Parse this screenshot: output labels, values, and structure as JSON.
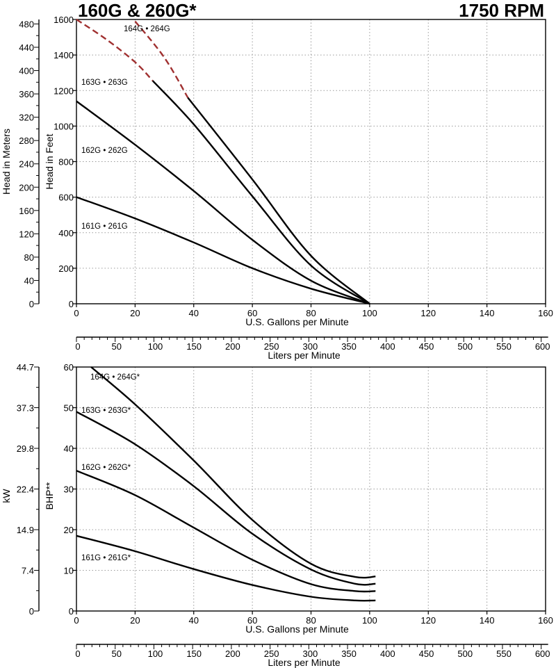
{
  "header": {
    "left_title": "160G & 260G*",
    "right_title": "1750 RPM"
  },
  "colors": {
    "curve": "#000000",
    "dashed_curve": "#a03030",
    "grid": "#9a9a9a"
  },
  "chart_data": [
    {
      "type": "line",
      "name": "head",
      "xlabel": "U.S. Gallons per Minute",
      "x2label": "Liters per Minute",
      "ylabel": "Head in Feet",
      "y2label": "Head in Meters",
      "xlim": [
        0,
        160
      ],
      "ylim": [
        0,
        1600
      ],
      "x_ticks": [
        0,
        20,
        40,
        60,
        80,
        100,
        120,
        140,
        160
      ],
      "y_ticks": [
        0,
        200,
        400,
        600,
        800,
        1000,
        1200,
        1400,
        1600
      ],
      "x2_ticks": [
        0,
        50,
        100,
        150,
        200,
        250,
        300,
        350,
        400,
        450,
        500,
        550,
        600
      ],
      "y2_ticks": [
        0,
        40,
        80,
        120,
        160,
        200,
        240,
        280,
        320,
        360,
        400,
        440,
        480
      ],
      "grid": true,
      "series": [
        {
          "name": "161G • 261G",
          "x": [
            0,
            20,
            40,
            60,
            80,
            100
          ],
          "y": [
            600,
            480,
            345,
            200,
            85,
            0
          ]
        },
        {
          "name": "162G • 262G",
          "x": [
            0,
            20,
            40,
            60,
            80,
            100
          ],
          "y": [
            1140,
            895,
            635,
            360,
            130,
            0
          ]
        },
        {
          "name": "163G • 263G",
          "x": [
            0,
            10,
            20,
            26
          ],
          "y": [
            1600,
            1490,
            1360,
            1255
          ],
          "dashed": true
        },
        {
          "name": "163G • 263G",
          "x": [
            26,
            40,
            60,
            80,
            100
          ],
          "y": [
            1255,
            1010,
            605,
            215,
            0
          ]
        },
        {
          "name": "164G • 264G",
          "x": [
            20,
            30,
            38
          ],
          "y": [
            1590,
            1385,
            1160
          ],
          "dashed": true
        },
        {
          "name": "164G • 264G",
          "x": [
            38,
            60,
            80,
            100
          ],
          "y": [
            1160,
            700,
            270,
            0
          ]
        }
      ]
    },
    {
      "type": "line",
      "name": "power",
      "xlabel": "U.S. Gallons per Minute",
      "x2label": "Liters per Minute",
      "ylabel": "BHP**",
      "y2label": "kW",
      "xlim": [
        0,
        160
      ],
      "ylim": [
        0,
        60
      ],
      "x_ticks": [
        0,
        20,
        40,
        60,
        80,
        100,
        120,
        140,
        160
      ],
      "y_ticks": [
        0,
        10,
        20,
        30,
        40,
        50,
        60
      ],
      "x2_ticks": [
        0,
        50,
        100,
        150,
        200,
        250,
        300,
        350,
        400,
        450,
        500,
        550,
        600
      ],
      "y2_ticks": [
        "0",
        "7.4",
        "14.9",
        "22.4",
        "29.8",
        "37.3",
        "44.7"
      ],
      "grid": true,
      "series": [
        {
          "name": "161G • 261G*",
          "x": [
            0,
            20,
            40,
            60,
            80,
            95,
            102
          ],
          "y": [
            18.5,
            14.7,
            10.3,
            6.4,
            3.5,
            2.6,
            2.6
          ]
        },
        {
          "name": "162G • 262G*",
          "x": [
            0,
            20,
            40,
            60,
            80,
            95,
            102
          ],
          "y": [
            34.5,
            28.5,
            20.5,
            12.6,
            6.6,
            4.9,
            4.9
          ]
        },
        {
          "name": "163G • 263G*",
          "x": [
            0,
            20,
            40,
            60,
            80,
            95,
            102
          ],
          "y": [
            49,
            41,
            30.7,
            19,
            10.2,
            6.7,
            6.7
          ]
        },
        {
          "name": "164G • 264G*",
          "x": [
            5,
            20,
            40,
            60,
            80,
            95,
            102
          ],
          "y": [
            60,
            50.8,
            37,
            22.4,
            11.6,
            8.4,
            8.5
          ]
        }
      ]
    }
  ]
}
